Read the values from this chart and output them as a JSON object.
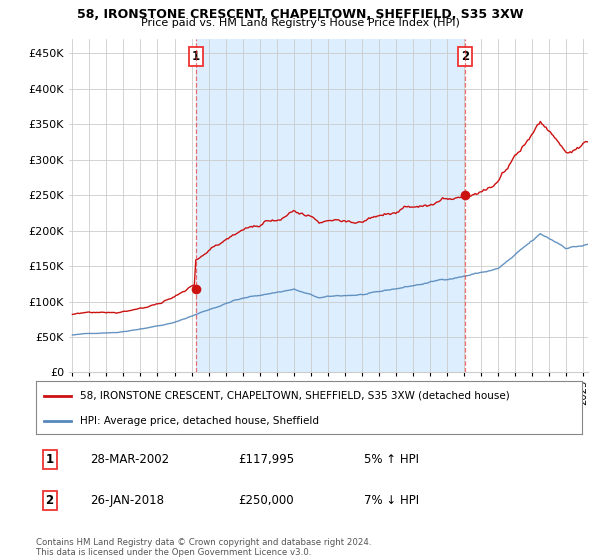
{
  "title1": "58, IRONSTONE CRESCENT, CHAPELTOWN, SHEFFIELD, S35 3XW",
  "title2": "Price paid vs. HM Land Registry's House Price Index (HPI)",
  "legend_line1": "58, IRONSTONE CRESCENT, CHAPELTOWN, SHEFFIELD, S35 3XW (detached house)",
  "legend_line2": "HPI: Average price, detached house, Sheffield",
  "footnote": "Contains HM Land Registry data © Crown copyright and database right 2024.\nThis data is licensed under the Open Government Licence v3.0.",
  "transaction1": {
    "label": "1",
    "date": "28-MAR-2002",
    "price": "£117,995",
    "hpi": "5% ↑ HPI"
  },
  "transaction2": {
    "label": "2",
    "date": "26-JAN-2018",
    "price": "£250,000",
    "hpi": "7% ↓ HPI"
  },
  "vline1_x": 2002.24,
  "vline2_x": 2018.07,
  "marker1_x": 2002.24,
  "marker1_y": 117995,
  "marker2_x": 2018.07,
  "marker2_y": 250000,
  "ylim": [
    0,
    470000
  ],
  "xlim": [
    1994.8,
    2025.3
  ],
  "hpi_color": "#5588bb",
  "price_color": "#cc1111",
  "vline_color": "#ee3333",
  "shade_color": "#ddeeff",
  "background_color": "#ffffff",
  "grid_color": "#cccccc"
}
